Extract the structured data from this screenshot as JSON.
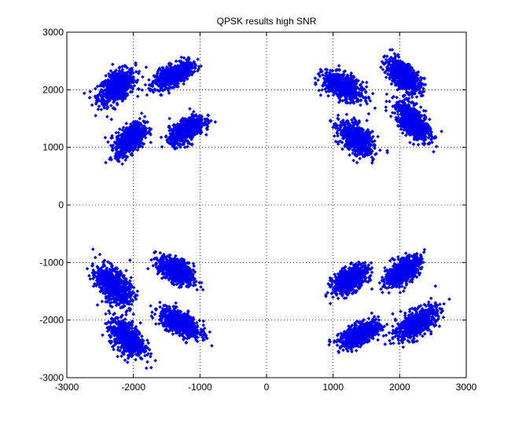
{
  "chart_data": {
    "type": "scatter",
    "title": "QPSK results high SNR",
    "xlabel": "",
    "ylabel": "",
    "xlim": [
      -3000,
      3000
    ],
    "ylim": [
      -3000,
      3000
    ],
    "xticks": [
      -3000,
      -2000,
      -1000,
      0,
      1000,
      2000,
      3000
    ],
    "yticks": [
      -3000,
      -2000,
      -1000,
      0,
      1000,
      2000,
      3000
    ],
    "xtick_labels": [
      "-3000",
      "-2000",
      "-1000",
      "0",
      "1000",
      "2000",
      "3000"
    ],
    "ytick_labels": [
      "-3000",
      "-2000",
      "-1000",
      "0",
      "1000",
      "2000",
      "3000"
    ],
    "grid": true,
    "marker": "diamond",
    "color": "#0000ee",
    "clusters": [
      {
        "cx": -2250,
        "cy": 2050,
        "sx": 140,
        "sy": 150,
        "rho": 0.5,
        "n": 700
      },
      {
        "cx": -1400,
        "cy": 2250,
        "sx": 140,
        "sy": 110,
        "rho": 0.6,
        "n": 700
      },
      {
        "cx": -2050,
        "cy": 1150,
        "sx": 110,
        "sy": 140,
        "rho": 0.5,
        "n": 700
      },
      {
        "cx": -1200,
        "cy": 1300,
        "sx": 130,
        "sy": 120,
        "rho": 0.6,
        "n": 700
      },
      {
        "cx": 1150,
        "cy": 2050,
        "sx": 150,
        "sy": 120,
        "rho": -0.5,
        "n": 700
      },
      {
        "cx": 2050,
        "cy": 2250,
        "sx": 130,
        "sy": 140,
        "rho": -0.6,
        "n": 700
      },
      {
        "cx": 1350,
        "cy": 1150,
        "sx": 130,
        "sy": 140,
        "rho": -0.5,
        "n": 700
      },
      {
        "cx": 2200,
        "cy": 1450,
        "sx": 130,
        "sy": 170,
        "rho": -0.6,
        "n": 700
      },
      {
        "cx": -2300,
        "cy": -1400,
        "sx": 130,
        "sy": 160,
        "rho": -0.5,
        "n": 700
      },
      {
        "cx": -1350,
        "cy": -1150,
        "sx": 130,
        "sy": 120,
        "rho": -0.5,
        "n": 700
      },
      {
        "cx": -2100,
        "cy": -2300,
        "sx": 130,
        "sy": 160,
        "rho": -0.5,
        "n": 700
      },
      {
        "cx": -1300,
        "cy": -2050,
        "sx": 150,
        "sy": 120,
        "rho": -0.6,
        "n": 700
      },
      {
        "cx": 1250,
        "cy": -1300,
        "sx": 130,
        "sy": 120,
        "rho": 0.5,
        "n": 700
      },
      {
        "cx": 2050,
        "cy": -1150,
        "sx": 130,
        "sy": 130,
        "rho": 0.6,
        "n": 700
      },
      {
        "cx": 1400,
        "cy": -2250,
        "sx": 150,
        "sy": 110,
        "rho": 0.6,
        "n": 700
      },
      {
        "cx": 2250,
        "cy": -2050,
        "sx": 150,
        "sy": 140,
        "rho": 0.6,
        "n": 700
      }
    ]
  }
}
